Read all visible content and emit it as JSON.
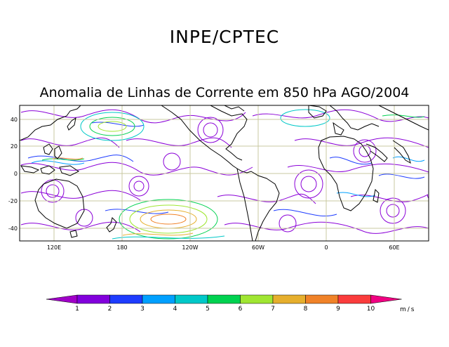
{
  "header": "INPE/CPTEC",
  "title": "Anomalia de Linhas de Corrente em 850 hPa AGO/2004",
  "axes": {
    "y_ticks": [
      "40",
      "20",
      "0",
      "-20",
      "-40"
    ],
    "x_ticks": [
      "120E",
      "180",
      "120W",
      "60W",
      "0",
      "60E"
    ]
  },
  "colorbar": {
    "labels": [
      "1",
      "2",
      "3",
      "4",
      "5",
      "6",
      "7",
      "8",
      "9",
      "10"
    ],
    "unit": "m/s",
    "colors": [
      "#a000c8",
      "#8200dc",
      "#1e3cff",
      "#00a0ff",
      "#00c8c8",
      "#00d250",
      "#a0e632",
      "#e6af2d",
      "#f08228",
      "#fa3c3c",
      "#f00082"
    ]
  },
  "colors": {
    "land_outline": "#000000",
    "grid": "#c8c8a0",
    "background": "#ffffff"
  }
}
